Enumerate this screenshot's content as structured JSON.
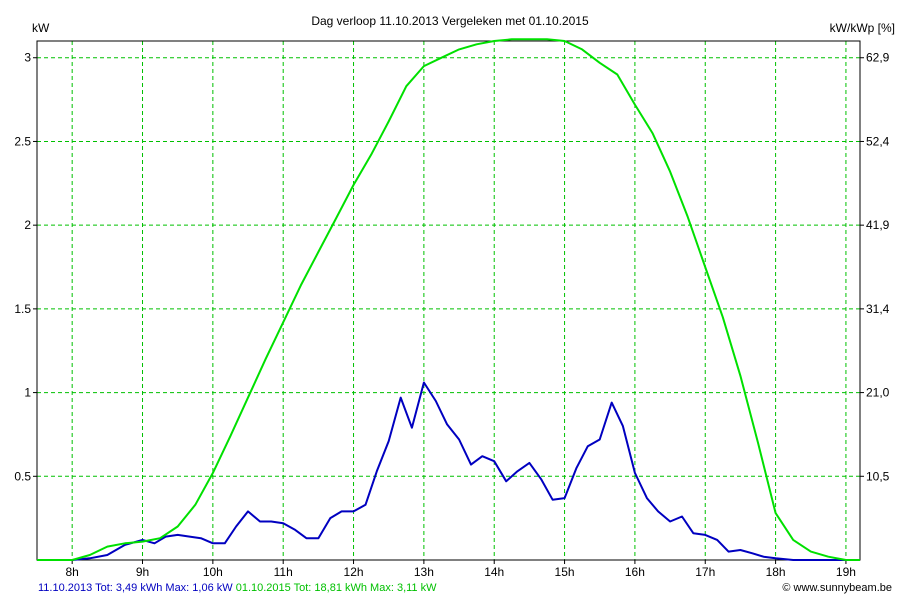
{
  "chart_data": {
    "type": "line",
    "title": "Dag  verloop 11.10.2013   Vergeleken met 01.10.2015",
    "ylabel_left": "kW",
    "ylabel_right": "kW/kWp [%]",
    "ylim": [
      0,
      3.1
    ],
    "xlim": [
      7.5,
      19.2
    ],
    "x_ticks": [
      8,
      9,
      10,
      11,
      12,
      13,
      14,
      15,
      16,
      17,
      18,
      19
    ],
    "x_tick_labels": [
      "8h",
      "9h",
      "10h",
      "11h",
      "12h",
      "13h",
      "14h",
      "15h",
      "16h",
      "17h",
      "18h",
      "19h"
    ],
    "y_ticks": [
      0.5,
      1,
      1.5,
      2,
      2.5,
      3
    ],
    "y_tick_labels": [
      "0.5",
      "1",
      "1.5",
      "2",
      "2.5",
      "3"
    ],
    "y2_ticks": [
      0.5,
      1,
      1.5,
      2,
      2.5,
      3
    ],
    "y2_tick_labels": [
      "10,5",
      "21,0",
      "31,4",
      "41,9",
      "52,4",
      "62,9"
    ],
    "grid": true,
    "series": [
      {
        "name": "11.10.2013",
        "color": "#0000c0",
        "x": [
          8.0,
          8.25,
          8.5,
          8.75,
          9.0,
          9.17,
          9.33,
          9.5,
          9.67,
          9.83,
          10.0,
          10.17,
          10.33,
          10.5,
          10.67,
          10.83,
          11.0,
          11.17,
          11.33,
          11.5,
          11.67,
          11.83,
          12.0,
          12.17,
          12.33,
          12.5,
          12.67,
          12.83,
          13.0,
          13.17,
          13.33,
          13.5,
          13.67,
          13.83,
          14.0,
          14.17,
          14.33,
          14.5,
          14.67,
          14.83,
          15.0,
          15.17,
          15.33,
          15.5,
          15.67,
          15.83,
          16.0,
          16.17,
          16.33,
          16.5,
          16.67,
          16.83,
          17.0,
          17.17,
          17.33,
          17.5,
          17.67,
          17.83,
          18.0,
          18.25,
          18.5,
          19.0
        ],
        "values": [
          0.0,
          0.01,
          0.03,
          0.09,
          0.12,
          0.1,
          0.14,
          0.15,
          0.14,
          0.13,
          0.1,
          0.1,
          0.2,
          0.29,
          0.23,
          0.23,
          0.22,
          0.18,
          0.13,
          0.13,
          0.25,
          0.29,
          0.29,
          0.33,
          0.53,
          0.71,
          0.97,
          0.79,
          1.06,
          0.95,
          0.81,
          0.72,
          0.57,
          0.62,
          0.59,
          0.47,
          0.53,
          0.58,
          0.48,
          0.36,
          0.37,
          0.55,
          0.68,
          0.72,
          0.94,
          0.8,
          0.52,
          0.37,
          0.29,
          0.23,
          0.26,
          0.16,
          0.15,
          0.12,
          0.05,
          0.06,
          0.04,
          0.02,
          0.01,
          0.0,
          0.0,
          0.0
        ]
      },
      {
        "name": "01.10.2015",
        "color": "#00e000",
        "x": [
          7.5,
          7.75,
          8.0,
          8.25,
          8.5,
          8.75,
          9.0,
          9.25,
          9.5,
          9.75,
          10.0,
          10.25,
          10.5,
          10.75,
          11.0,
          11.25,
          11.5,
          11.75,
          12.0,
          12.25,
          12.5,
          12.75,
          13.0,
          13.25,
          13.5,
          13.75,
          14.0,
          14.25,
          14.5,
          14.75,
          15.0,
          15.25,
          15.5,
          15.75,
          16.0,
          16.25,
          16.5,
          16.75,
          17.0,
          17.25,
          17.5,
          17.75,
          18.0,
          18.25,
          18.5,
          18.75,
          19.0,
          19.1,
          19.2
        ],
        "values": [
          0.0,
          0.0,
          0.0,
          0.03,
          0.08,
          0.1,
          0.11,
          0.13,
          0.2,
          0.33,
          0.52,
          0.74,
          0.97,
          1.2,
          1.42,
          1.64,
          1.84,
          2.04,
          2.24,
          2.42,
          2.62,
          2.83,
          2.95,
          3.0,
          3.05,
          3.08,
          3.1,
          3.11,
          3.11,
          3.11,
          3.1,
          3.05,
          2.97,
          2.9,
          2.72,
          2.55,
          2.32,
          2.05,
          1.75,
          1.45,
          1.1,
          0.7,
          0.28,
          0.12,
          0.05,
          0.02,
          0.0,
          0.0,
          0.0
        ]
      }
    ],
    "footer": {
      "series1_text": "11.10.2013 Tot: 3,49 kWh Max: 1,06 kW",
      "series2_text": "01.10.2015 Tot: 18,81 kWh Max: 3,11 kW",
      "copyright": "© www.sunnybeam.be"
    }
  }
}
